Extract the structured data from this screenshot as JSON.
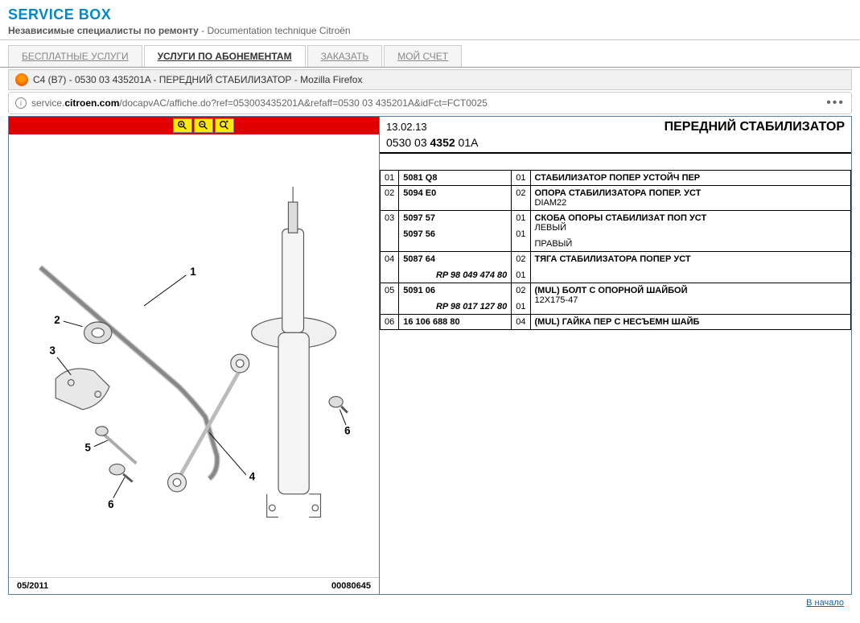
{
  "header": {
    "logo": "SERVICE BOX",
    "subtitle_bold": "Независимые специалисты по ремонту",
    "subtitle_rest": " - Documentation technique Citroën"
  },
  "tabs": [
    {
      "label": "БЕСПЛАТНЫЕ УСЛУГИ",
      "active": false
    },
    {
      "label": "УСЛУГИ ПО АБОНЕМЕНТАМ",
      "active": true
    },
    {
      "label": "ЗАКАЗАТЬ",
      "active": false
    },
    {
      "label": "МОЙ СЧЕТ",
      "active": false
    }
  ],
  "browser": {
    "title": "C4 (B7) - 0530 03 435201A - ПЕРЕДНИЙ СТАБИЛИЗАТОР - Mozilla Firefox",
    "url_prefix": "service.",
    "url_bold": "citroen.com",
    "url_rest": "/docapvAC/affiche.do?ref=053003435201A&refaff=0530 03 435201A&idFct=FCT0025"
  },
  "right": {
    "date": "13.02.13",
    "title": "ПЕРЕДНИЙ СТАБИЛИЗАТОР",
    "ref_pre": "0530 03 ",
    "ref_bold": "4352",
    "ref_post": " 01A"
  },
  "diagram": {
    "date": "05/2011",
    "code": "00080645",
    "labels": [
      "1",
      "2",
      "3",
      "4",
      "5",
      "6",
      "6"
    ]
  },
  "parts": [
    {
      "num": "01",
      "refs": [
        {
          "ref": "5081 Q8",
          "qty": "01"
        }
      ],
      "name": "СТАБИЛИЗАТОР ПОПЕР УСТОЙЧ ПЕР",
      "desc": []
    },
    {
      "num": "02",
      "refs": [
        {
          "ref": "5094 E0",
          "qty": "02"
        }
      ],
      "name": "ОПОРА СТАБИЛИЗАТОРА ПОПЕР. УСТ",
      "desc": [
        "DIAM22"
      ]
    },
    {
      "num": "03",
      "refs": [
        {
          "ref": "5097 57",
          "qty": "01"
        },
        {
          "ref": "5097 56",
          "qty": "01"
        }
      ],
      "name": "СКОБА ОПОРЫ СТАБИЛИЗАТ ПОП УСТ",
      "desc": [
        "ЛЕВЫЙ",
        "ПРАВЫЙ"
      ]
    },
    {
      "num": "04",
      "refs": [
        {
          "ref": "5087 64",
          "qty": "02"
        },
        {
          "rp": "RP 98 049 474 80",
          "qty": "01"
        }
      ],
      "name": "ТЯГА СТАБИЛИЗАТОРА ПОПЕР УСТ",
      "desc": []
    },
    {
      "num": "05",
      "refs": [
        {
          "ref": "5091 06",
          "qty": "02"
        },
        {
          "rp": "RP 98 017 127 80",
          "qty": "01"
        }
      ],
      "name": "(MUL) БОЛТ С ОПОРНОЙ ШАЙБОЙ",
      "desc": [
        "12X175-47"
      ]
    },
    {
      "num": "06",
      "refs": [
        {
          "ref": "16 106 688 80",
          "qty": "04"
        }
      ],
      "name": "(MUL) ГАЙКА ПЕР С НЕСЪЕМН ШАЙБ",
      "desc": []
    }
  ],
  "footer_link": "В начало",
  "colors": {
    "toolbar_bg": "#e00000",
    "zoom_bg": "#ffea00",
    "logo": "#0088cc",
    "border": "#5a7a9a"
  }
}
